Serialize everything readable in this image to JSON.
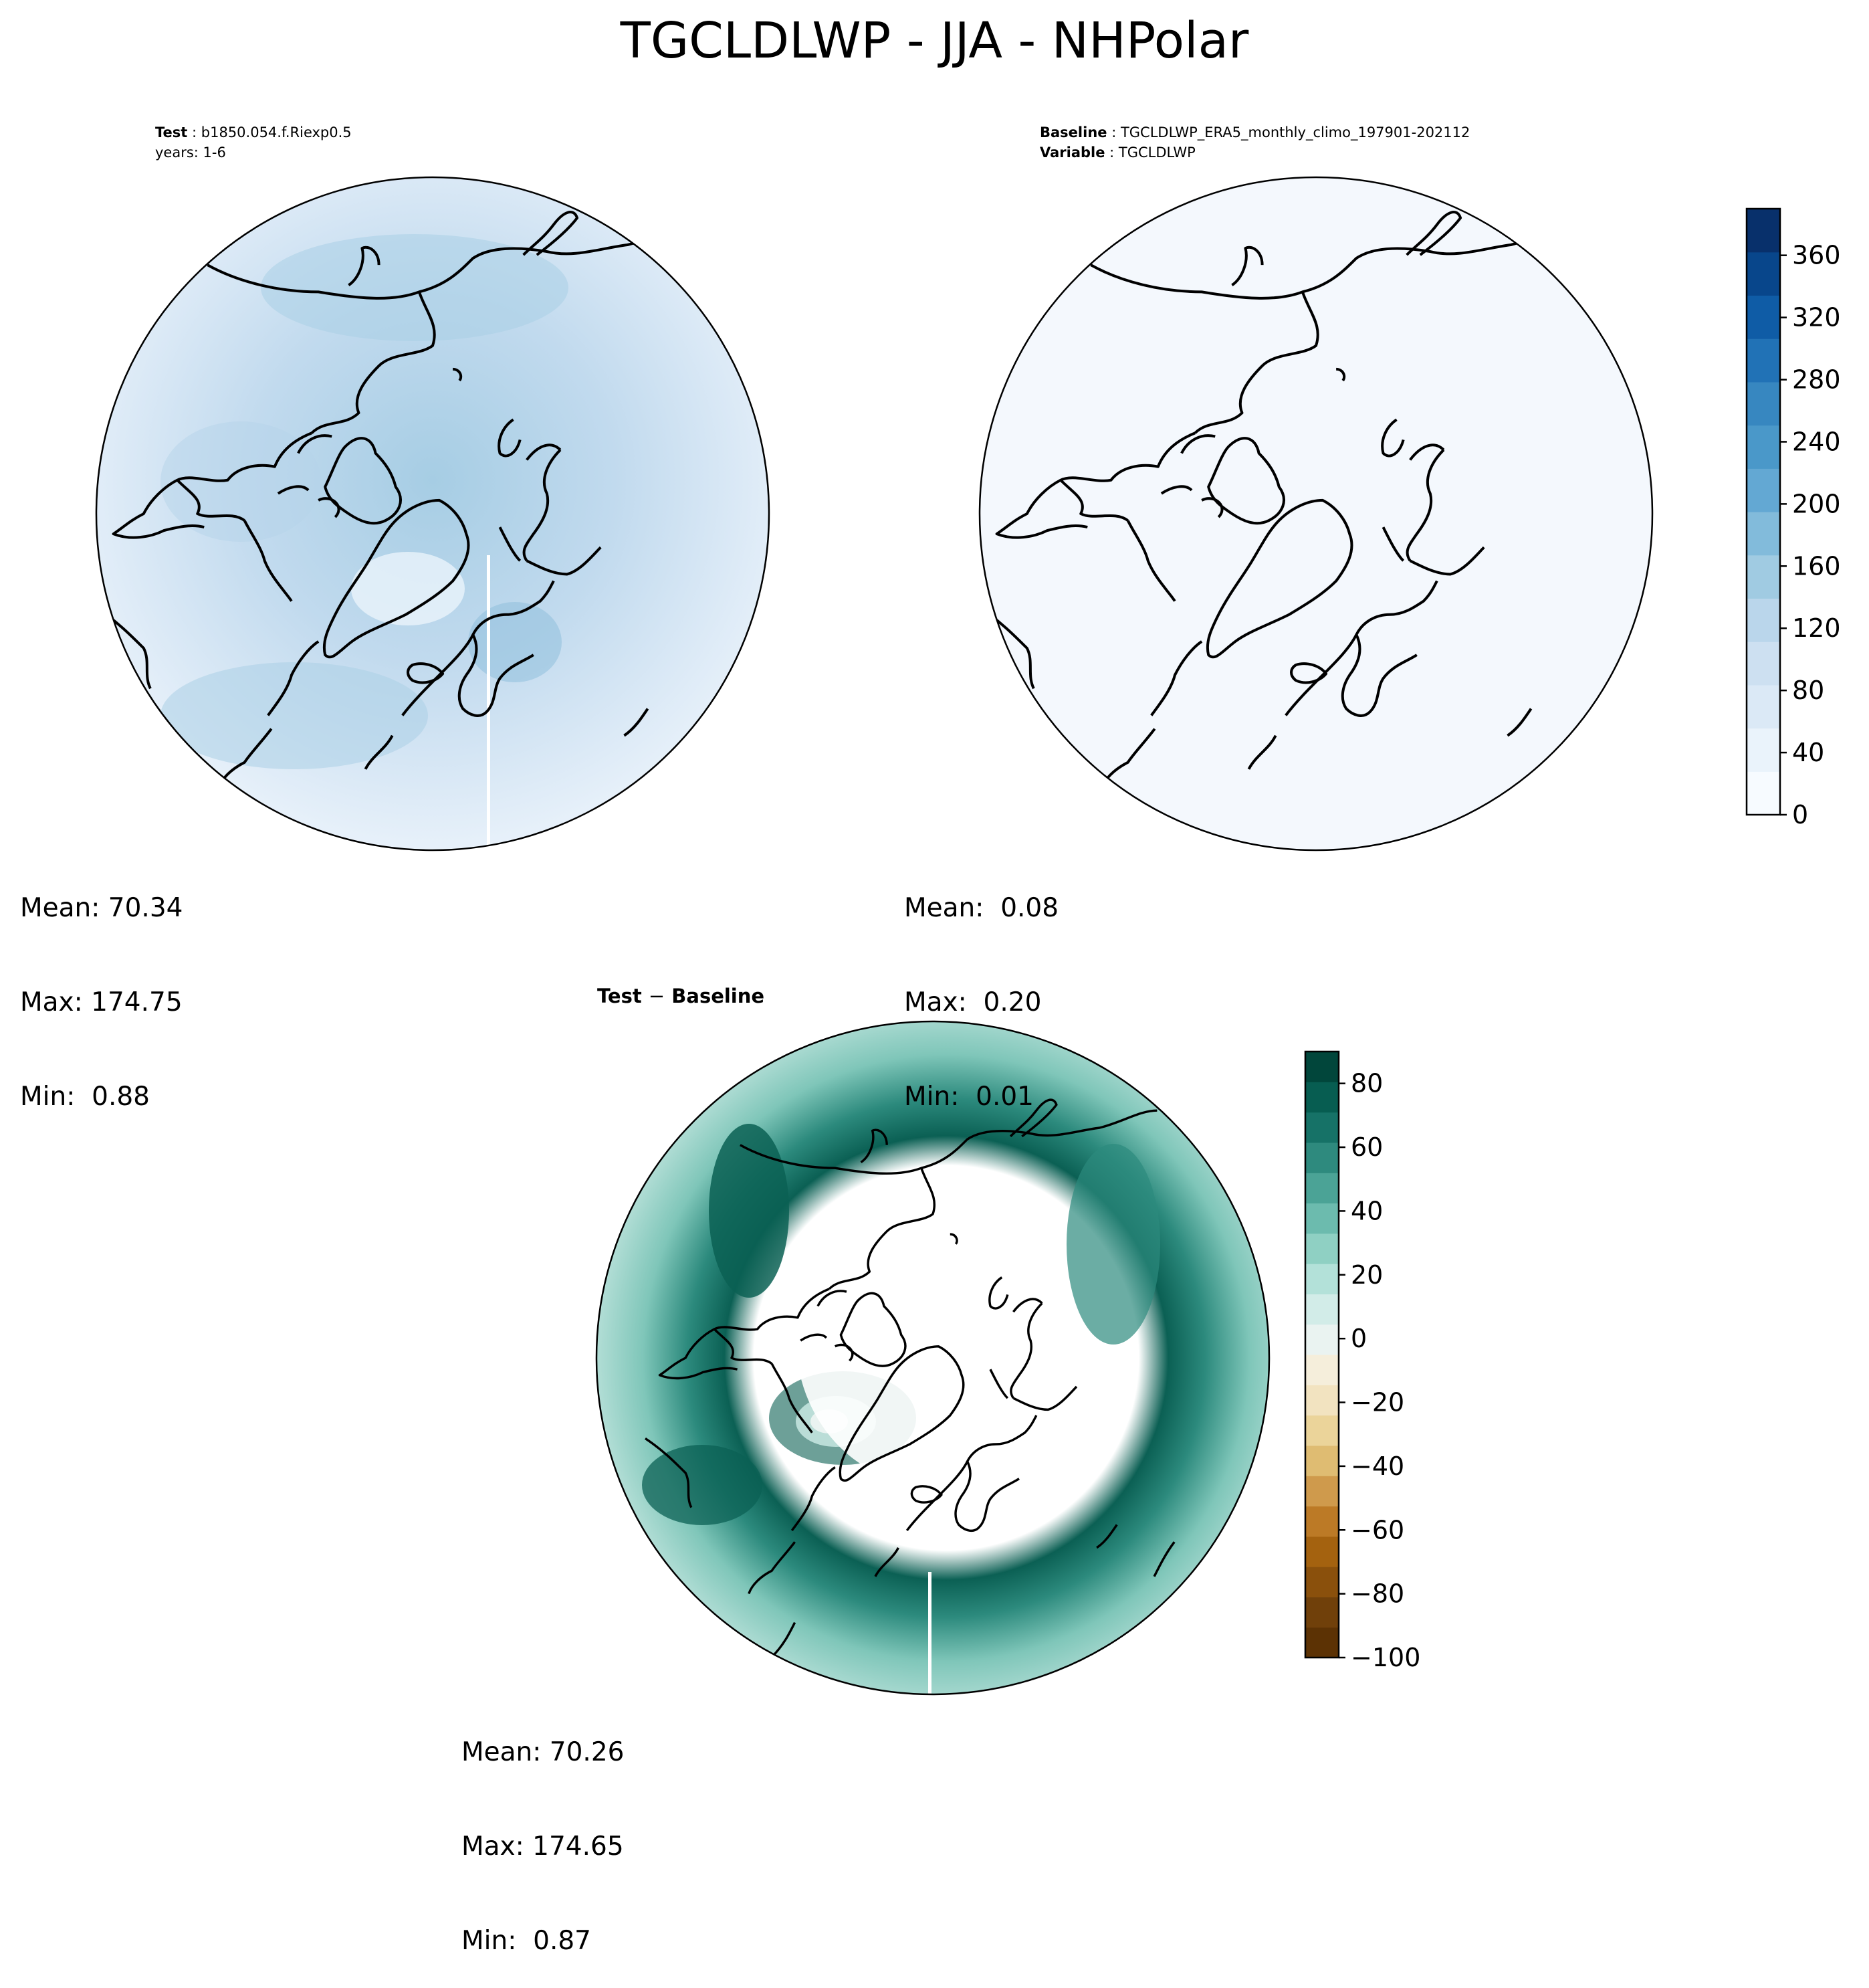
{
  "figure": {
    "title": "TGCLDLWP - JJA - NHPolar"
  },
  "test_panel": {
    "label_key": "Test",
    "label_value": "b1850.054.f.Riexp0.5",
    "line2": "years: 1-6",
    "stats": {
      "mean": "Mean: 70.34",
      "max": "Max: 174.75",
      "min": "Min:  0.88"
    }
  },
  "baseline_panel": {
    "label_key": "Baseline",
    "label_value": "TGCLDLWP_ERA5_monthly_climo_197901-202112",
    "var_key": "Variable",
    "var_value": "TGCLDLWP",
    "stats": {
      "mean": "Mean:  0.08",
      "max": "Max:  0.20",
      "min": "Min:  0.01"
    }
  },
  "diff_panel": {
    "title_left": "Test",
    "title_sep": "−",
    "title_right": "Baseline",
    "stats": {
      "mean": "Mean: 70.26",
      "max": "Max: 174.65",
      "min": "Min:  0.87"
    }
  },
  "colorbar_top": {
    "colormap": "Blues",
    "range": [
      0,
      390
    ],
    "ticks": [
      "0",
      "40",
      "80",
      "120",
      "160",
      "200",
      "240",
      "280",
      "320",
      "360"
    ],
    "colors": [
      "#f7fbff",
      "#eaf3fb",
      "#dbe9f6",
      "#cde0f1",
      "#bad6eb",
      "#a0cbe2",
      "#82bbdb",
      "#63a8d3",
      "#4a98c9",
      "#3787c0",
      "#2172b6",
      "#0f5ca6",
      "#08468b",
      "#08306b"
    ]
  },
  "colorbar_diff": {
    "colormap": "BrBG",
    "range": [
      -100,
      90
    ],
    "ticks": [
      "−100",
      "−80",
      "−60",
      "−40",
      "−20",
      "0",
      "20",
      "40",
      "60",
      "80"
    ],
    "colors": [
      "#5c3204",
      "#70400a",
      "#8a500c",
      "#a4620f",
      "#bc7a26",
      "#cf9a4c",
      "#dfbc72",
      "#ebd49a",
      "#f2e3c0",
      "#f5eedb",
      "#eaf3f1",
      "#d2ece8",
      "#b3e1d9",
      "#8fd0c3",
      "#6cbbae",
      "#4ba396",
      "#2e8a7e",
      "#167267",
      "#075d51",
      "#01463b"
    ]
  }
}
